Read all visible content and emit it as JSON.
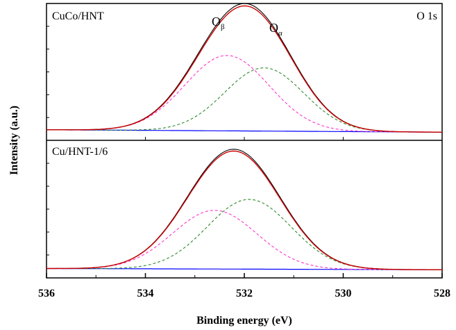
{
  "chart_data": {
    "type": "line",
    "xlabel": "Binding energy (eV)",
    "ylabel": "Intensity (a.u.)",
    "xlim": [
      536,
      528
    ],
    "x_ticks": [
      "536",
      "534",
      "532",
      "530",
      "528"
    ],
    "x_tick_values": [
      536,
      534,
      532,
      530,
      528
    ],
    "region_label": "O 1s",
    "peak_labels": [
      {
        "base": "O",
        "sub": "β"
      },
      {
        "base": "O",
        "sub": "α"
      }
    ],
    "colors": {
      "raw": "#000000",
      "fit": "#cc0000",
      "o_beta": "#ff33cc",
      "o_alpha": "#2e8b2e",
      "background": "#0000ff"
    },
    "panels": [
      {
        "label": "CuCo/HNT",
        "baseline": [
          0.03,
          0.01
        ],
        "components": [
          {
            "key": "o_beta",
            "center": 532.35,
            "sigma": 0.85,
            "amplitude": 0.62
          },
          {
            "key": "o_alpha",
            "center": 531.6,
            "sigma": 0.8,
            "amplitude": 0.52
          }
        ],
        "raw_offset": 0.02
      },
      {
        "label": "Cu/HNT-1/6",
        "baseline": [
          0.02,
          0.01
        ],
        "components": [
          {
            "key": "o_beta",
            "center": 532.6,
            "sigma": 0.85,
            "amplitude": 0.48
          },
          {
            "key": "o_alpha",
            "center": 531.9,
            "sigma": 0.85,
            "amplitude": 0.57
          }
        ],
        "raw_offset": 0.015
      }
    ]
  }
}
